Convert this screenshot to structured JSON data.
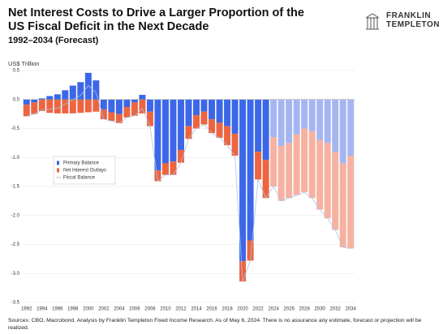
{
  "chart_data": {
    "type": "bar",
    "title": "Net Interest Costs to Drive a Larger Proportion of the US Fiscal Deficit in the Next Decade",
    "subtitle": "1992–2034 (Forecast)",
    "y_label": "US$ Trillion",
    "logo": [
      "FRANKLIN",
      "TEMPLETON"
    ],
    "source": "Sources: CBO, Macrobond. Analysis by Franklin Templeton Fixed Income Research. As of May 6, 2024. There is no assurance any estimate, forecast or projection will be realized.",
    "categories": [
      "1992",
      null,
      "1994",
      null,
      "1996",
      null,
      "1998",
      null,
      "2000",
      null,
      "2002",
      null,
      "2004",
      null,
      "2006",
      null,
      "2008",
      null,
      "2010",
      null,
      "2012",
      null,
      "2014",
      null,
      "2016",
      null,
      "2018",
      null,
      "2020",
      null,
      "2022",
      null,
      "2024",
      null,
      "2026",
      null,
      "2028",
      null,
      "2030",
      null,
      "2032",
      null,
      "2034"
    ],
    "ylim": [
      -3.5,
      0.5
    ],
    "yticks": [
      0.5,
      {
        "value": 0,
        "label": "0.0"
      },
      -0.5,
      {
        "value": -1,
        "label": "-1.0"
      },
      -1.5,
      {
        "value": -2,
        "label": "-2.0"
      },
      -2.5,
      {
        "value": -3,
        "label": "-3.0"
      },
      -3.5
    ],
    "grid": true,
    "series": [
      {
        "name": "Primary Balance",
        "type": "bar",
        "color": "#3b67e8",
        "colors": [
          "#3b67e8",
          "#3b67e8",
          "#3b67e8",
          "#3b67e8",
          "#3b67e8",
          "#3b67e8",
          "#3b67e8",
          "#3b67e8",
          "#3b67e8",
          "#3b67e8",
          "#3b67e8",
          "#3b67e8",
          "#3b67e8",
          "#3b67e8",
          "#3b67e8",
          "#3b67e8",
          "#3b67e8",
          "#3b67e8",
          "#3b67e8",
          "#3b67e8",
          "#3b67e8",
          "#3b67e8",
          "#3b67e8",
          "#3b67e8",
          "#3b67e8",
          "#3b67e8",
          "#3b67e8",
          "#3b67e8",
          "#3b67e8",
          "#3b67e8",
          "#3b67e8",
          "#3b67e8",
          "#a3b6f2",
          "#a3b6f2",
          "#a3b6f2",
          "#a3b6f2",
          "#a3b6f2",
          "#a3b6f2",
          "#a3b6f2",
          "#a3b6f2",
          "#a3b6f2",
          "#a3b6f2",
          "#a3b6f2"
        ],
        "values": [
          -0.09,
          -0.05,
          0.02,
          0.06,
          0.09,
          0.16,
          0.24,
          0.3,
          0.46,
          0.33,
          -0.17,
          -0.22,
          -0.25,
          -0.13,
          -0.05,
          0.08,
          -0.21,
          -1.22,
          -1.1,
          -1.07,
          -0.87,
          -0.46,
          -0.27,
          -0.21,
          -0.34,
          -0.4,
          -0.46,
          -0.59,
          -2.79,
          -2.43,
          -0.9,
          -1.04,
          -0.65,
          -0.8,
          -0.75,
          -0.6,
          -0.5,
          -0.55,
          -0.7,
          -0.75,
          -0.9,
          -1.1,
          -0.97
        ]
      },
      {
        "name": "Net Interest Outlays",
        "type": "bar",
        "color": "#ec6540",
        "colors": [
          "#ec6540",
          "#ec6540",
          "#ec6540",
          "#ec6540",
          "#ec6540",
          "#ec6540",
          "#ec6540",
          "#ec6540",
          "#ec6540",
          "#ec6540",
          "#ec6540",
          "#ec6540",
          "#ec6540",
          "#ec6540",
          "#ec6540",
          "#ec6540",
          "#ec6540",
          "#ec6540",
          "#ec6540",
          "#ec6540",
          "#ec6540",
          "#ec6540",
          "#ec6540",
          "#ec6540",
          "#ec6540",
          "#ec6540",
          "#ec6540",
          "#ec6540",
          "#ec6540",
          "#ec6540",
          "#ec6540",
          "#ec6540",
          "#f7b1a1",
          "#f7b1a1",
          "#f7b1a1",
          "#f7b1a1",
          "#f7b1a1",
          "#f7b1a1",
          "#f7b1a1",
          "#f7b1a1",
          "#f7b1a1",
          "#f7b1a1",
          "#f7b1a1"
        ],
        "values": [
          -0.2,
          -0.2,
          -0.2,
          -0.23,
          -0.24,
          -0.24,
          -0.24,
          -0.23,
          -0.22,
          -0.21,
          -0.17,
          -0.15,
          -0.16,
          -0.18,
          -0.23,
          -0.24,
          -0.25,
          -0.19,
          -0.2,
          -0.23,
          -0.22,
          -0.22,
          -0.23,
          -0.22,
          -0.24,
          -0.26,
          -0.33,
          -0.38,
          -0.35,
          -0.35,
          -0.48,
          -0.66,
          -0.85,
          -0.95,
          -0.95,
          -1.05,
          -1.1,
          -1.15,
          -1.2,
          -1.3,
          -1.35,
          -1.45,
          -1.6
        ]
      },
      {
        "name": "Fiscal Balance",
        "type": "line",
        "color": "#a9c3e8",
        "values": [
          -0.29,
          -0.25,
          -0.18,
          -0.17,
          -0.15,
          -0.08,
          0,
          0.07,
          0.24,
          0.12,
          -0.34,
          -0.37,
          -0.41,
          -0.31,
          -0.28,
          -0.16,
          -0.46,
          -1.41,
          -1.3,
          -1.3,
          -1.09,
          -0.68,
          -0.5,
          -0.43,
          -0.58,
          -0.66,
          -0.79,
          -0.97,
          -3.14,
          -2.78,
          -1.38,
          -1.7,
          -1.5,
          -1.75,
          -1.7,
          -1.65,
          -1.6,
          -1.7,
          -1.9,
          -2.05,
          -2.25,
          -2.55,
          -2.57
        ]
      }
    ]
  }
}
